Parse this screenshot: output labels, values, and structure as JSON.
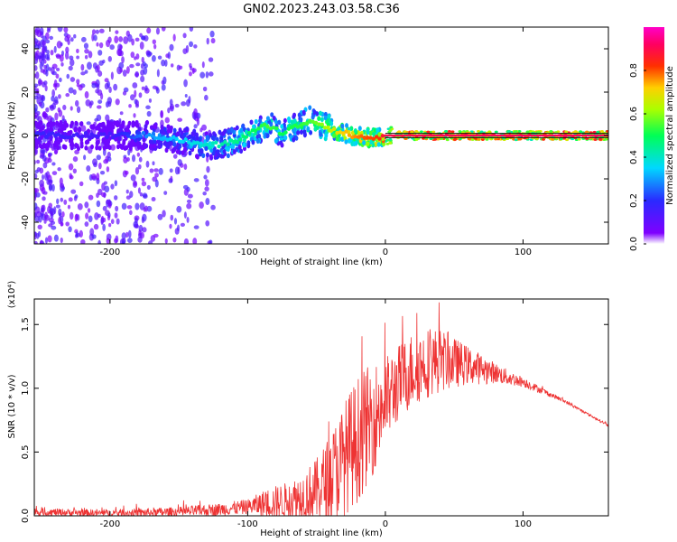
{
  "title": "GN02.2023.243.03.58.C36",
  "chart_data": [
    {
      "type": "heatmap",
      "xlabel": "Height of straight line (km)",
      "ylabel": "Frequency (Hz)",
      "xlim": [
        -255,
        162
      ],
      "ylim": [
        -50,
        50
      ],
      "xticks": [
        -200,
        -100,
        0,
        100
      ],
      "yticks": [
        40,
        20,
        0,
        -20,
        -40
      ],
      "colorbar": {
        "label": "Normalized spectral amplitude",
        "range": [
          0,
          1
        ],
        "ticks": [
          "0.0",
          "0.2",
          "0.4",
          "0.6",
          "0.8"
        ],
        "colormap": "rainbow (violet-blue-cyan-green-yellow-red-magenta)"
      },
      "ridge": {
        "description": "dominant frequency ridge (Hz) vs height (km)",
        "x": [
          -255,
          -200,
          -170,
          -150,
          -130,
          -110,
          -95,
          -85,
          -75,
          -65,
          -55,
          -45,
          -35,
          -25,
          -15,
          -5,
          0,
          50,
          100,
          162
        ],
        "y": [
          0,
          0,
          0,
          -2,
          -5,
          -3,
          2,
          5,
          1,
          4,
          7,
          5,
          2,
          0,
          -1,
          -1,
          0,
          0,
          0,
          0
        ],
        "amplitude": [
          0.18,
          0.15,
          0.3,
          0.35,
          0.4,
          0.45,
          0.5,
          0.55,
          0.5,
          0.52,
          0.55,
          0.6,
          0.7,
          0.75,
          0.8,
          0.82,
          0.9,
          0.92,
          0.92,
          0.92
        ]
      },
      "grid": false
    },
    {
      "type": "line",
      "xlabel": "Height of straight line (km)",
      "ylabel": "SNR (10 * v/v)",
      "y_multiplier": "(x10⁴)",
      "xlim": [
        -255,
        162
      ],
      "ylim": [
        0,
        1.7
      ],
      "xticks": [
        -200,
        -100,
        0,
        100
      ],
      "yticks": [
        0.0,
        0.5,
        1.0,
        1.5
      ],
      "series": [
        {
          "color": "#ee3333",
          "x": [
            -255,
            -200,
            -150,
            -120,
            -100,
            -85,
            -70,
            -60,
            -50,
            -40,
            -30,
            -20,
            -10,
            0,
            10,
            20,
            30,
            40,
            50,
            60,
            70,
            80,
            90,
            100,
            110,
            120,
            130,
            140,
            150,
            162
          ],
          "y": [
            0.03,
            0.02,
            0.03,
            0.05,
            0.07,
            0.1,
            0.12,
            0.15,
            0.2,
            0.3,
            0.45,
            0.6,
            0.75,
            0.9,
            1.05,
            1.15,
            1.2,
            1.22,
            1.2,
            1.18,
            1.15,
            1.12,
            1.08,
            1.05,
            1.0,
            0.95,
            0.9,
            0.84,
            0.78,
            0.71
          ],
          "noise_envelope": [
            0.03,
            0.03,
            0.04,
            0.05,
            0.06,
            0.12,
            0.15,
            0.2,
            0.25,
            0.35,
            0.45,
            0.5,
            0.45,
            0.35,
            0.3,
            0.3,
            0.28,
            0.25,
            0.2,
            0.15,
            0.12,
            0.08,
            0.06,
            0.04,
            0.03,
            0.02,
            0.015,
            0.01,
            0.01,
            0.01
          ]
        }
      ],
      "grid": false
    }
  ]
}
